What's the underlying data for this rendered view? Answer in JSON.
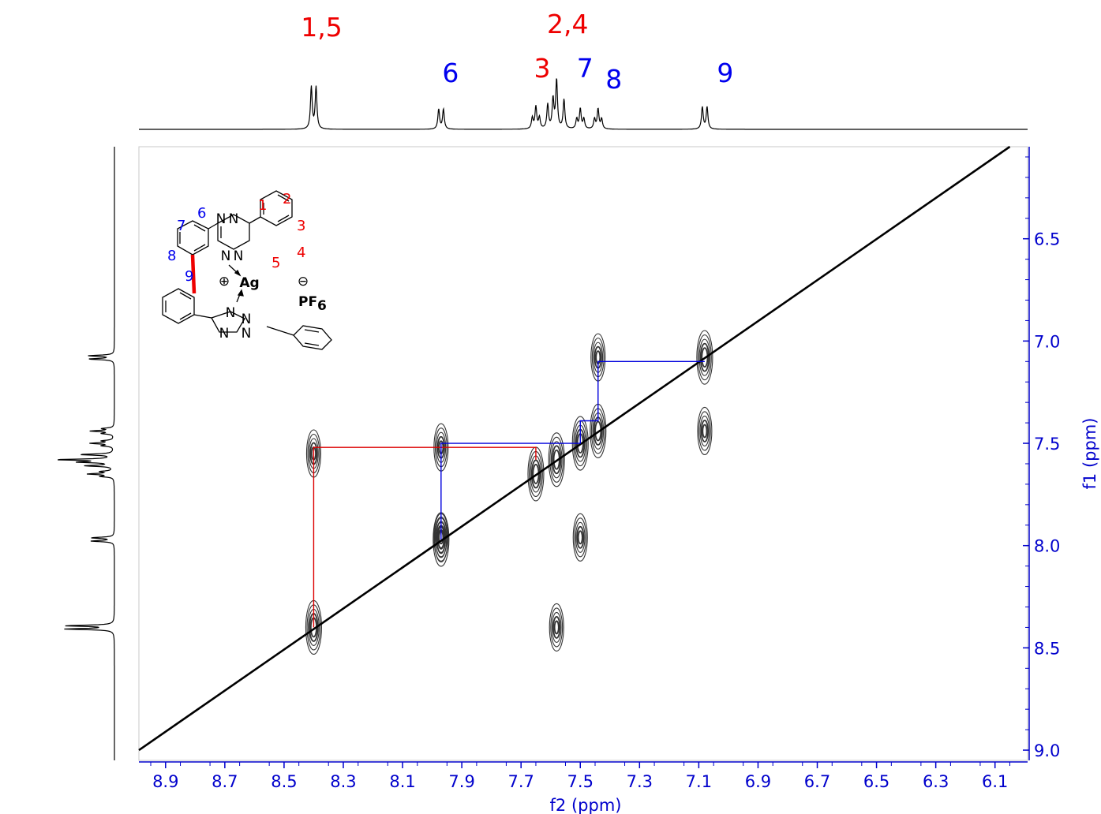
{
  "colors": {
    "axis": "#0000cc",
    "red_label": "#ee0000",
    "blue_label": "#0000ee",
    "trace": "#000000",
    "contour": "#333333",
    "red_path": "#dd0000",
    "blue_path": "#0000dd",
    "silver": "#f08c1e"
  },
  "chart_data": {
    "type": "2D NMR COSY spectrum",
    "xlabel": "f2 (ppm)",
    "ylabel": "f1 (ppm)",
    "xlim": [
      8.99,
      5.99
    ],
    "ylim": [
      6.05,
      9.05
    ],
    "x_ticks": [
      "8.9",
      "8.7",
      "8.5",
      "8.3",
      "8.1",
      "7.9",
      "7.7",
      "7.5",
      "7.3",
      "7.1",
      "6.9",
      "6.7",
      "6.5",
      "6.3",
      "6.1"
    ],
    "y_ticks": [
      "6.5",
      "7.0",
      "7.5",
      "8.0",
      "8.5",
      "9.0"
    ],
    "peak_labels": [
      {
        "text": "1,5",
        "ppm": 8.4,
        "group": "red"
      },
      {
        "text": "6",
        "ppm": 7.97,
        "group": "blue"
      },
      {
        "text": "3",
        "ppm": 7.65,
        "group": "red"
      },
      {
        "text": "2,4",
        "ppm": 7.58,
        "group": "red"
      },
      {
        "text": "7",
        "ppm": 7.5,
        "group": "blue"
      },
      {
        "text": "8",
        "ppm": 7.44,
        "group": "blue"
      },
      {
        "text": "9",
        "ppm": 7.08,
        "group": "blue"
      }
    ],
    "diagonal_peaks": [
      {
        "x": 8.4,
        "y": 8.4
      },
      {
        "x": 7.97,
        "y": 7.97
      },
      {
        "x": 7.65,
        "y": 7.65
      },
      {
        "x": 7.58,
        "y": 7.58
      },
      {
        "x": 7.5,
        "y": 7.5
      },
      {
        "x": 7.44,
        "y": 7.44
      },
      {
        "x": 7.08,
        "y": 7.08
      }
    ],
    "cross_peaks": [
      {
        "x": 8.4,
        "y": 7.55
      },
      {
        "x": 7.97,
        "y": 7.52
      },
      {
        "x": 7.97,
        "y": 7.96
      },
      {
        "x": 7.58,
        "y": 8.4
      },
      {
        "x": 7.5,
        "y": 7.96
      },
      {
        "x": 7.44,
        "y": 7.08
      },
      {
        "x": 7.08,
        "y": 7.44
      }
    ],
    "red_path": [
      [
        8.4,
        8.4
      ],
      [
        8.4,
        7.52
      ],
      [
        7.65,
        7.52
      ],
      [
        7.65,
        7.58
      ]
    ],
    "blue_path": [
      [
        7.97,
        7.97
      ],
      [
        7.97,
        7.5
      ],
      [
        7.5,
        7.5
      ],
      [
        7.5,
        7.39
      ],
      [
        7.44,
        7.39
      ],
      [
        7.44,
        7.1
      ],
      [
        7.08,
        7.1
      ]
    ],
    "projection_peaks": [
      {
        "ppm": 8.4,
        "h": 0.95,
        "mult": "d"
      },
      {
        "ppm": 7.97,
        "h": 0.45,
        "mult": "d"
      },
      {
        "ppm": 7.65,
        "h": 0.5,
        "mult": "t"
      },
      {
        "ppm": 7.58,
        "h": 1.0,
        "mult": "m"
      },
      {
        "ppm": 7.5,
        "h": 0.45,
        "mult": "t"
      },
      {
        "ppm": 7.44,
        "h": 0.45,
        "mult": "t"
      },
      {
        "ppm": 7.08,
        "h": 0.5,
        "mult": "d"
      }
    ]
  },
  "structure": {
    "positions_red": [
      "1",
      "2",
      "3",
      "4",
      "5"
    ],
    "positions_blue": [
      "6",
      "7",
      "8",
      "9"
    ],
    "atoms": {
      "N": "N",
      "Ag": "Ag",
      "PF": "PF",
      "six": "6"
    },
    "charges": {
      "plus": "⊕",
      "minus": "⊖"
    }
  }
}
